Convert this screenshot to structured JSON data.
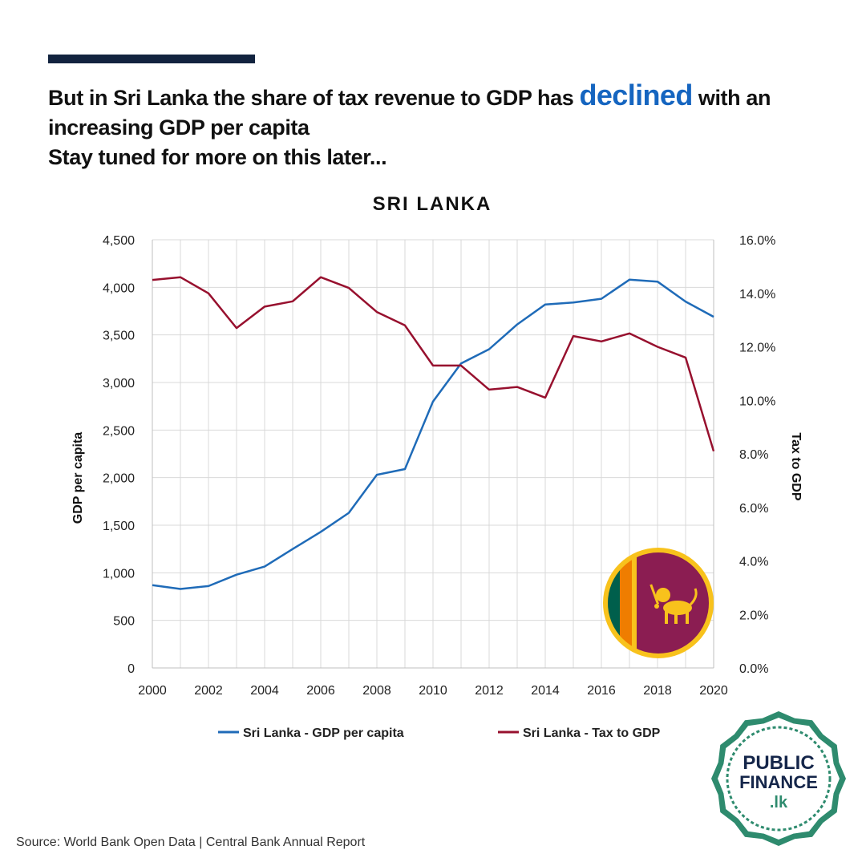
{
  "header": {
    "headline_pre": "But in Sri Lanka the share of tax revenue to GDP has",
    "headline_highlight": "declined",
    "headline_post": "with an",
    "headline_line2": "increasing GDP per capita",
    "headline_line3": "Stay tuned for more on this later..."
  },
  "colors": {
    "gdp_series": "#1f6bb8",
    "tax_series": "#97102e",
    "highlight": "#1565c0",
    "top_bar": "#12233f"
  },
  "chart_data": {
    "type": "line",
    "title": "SRI LANKA",
    "x": [
      2000,
      2001,
      2002,
      2003,
      2004,
      2005,
      2006,
      2007,
      2008,
      2009,
      2010,
      2011,
      2012,
      2013,
      2014,
      2015,
      2016,
      2017,
      2018,
      2019,
      2020
    ],
    "x_ticks": [
      "2000",
      "2002",
      "2004",
      "2006",
      "2008",
      "2010",
      "2012",
      "2014",
      "2016",
      "2018",
      "2020"
    ],
    "ylabel": "GDP per capita",
    "y2label": "Tax to GDP",
    "ylim": [
      0,
      4500
    ],
    "y2lim": [
      0,
      16
    ],
    "y_ticks": [
      "0",
      "500",
      "1,000",
      "1,500",
      "2,000",
      "2,500",
      "3,000",
      "3,500",
      "4,000",
      "4,500"
    ],
    "y2_ticks": [
      "0.0%",
      "2.0%",
      "4.0%",
      "6.0%",
      "8.0%",
      "10.0%",
      "12.0%",
      "14.0%",
      "16.0%"
    ],
    "grid": true,
    "legend_position": "bottom",
    "series": [
      {
        "name": "Sri Lanka - GDP per capita",
        "axis": "left",
        "values": [
          870,
          830,
          860,
          980,
          1065,
          1250,
          1430,
          1630,
          2030,
          2090,
          2800,
          3200,
          3350,
          3610,
          3820,
          3840,
          3880,
          4080,
          4060,
          3850,
          3690
        ]
      },
      {
        "name": "Sri Lanka - Tax to GDP",
        "axis": "right",
        "values": [
          14.5,
          14.6,
          14.0,
          12.7,
          13.5,
          13.7,
          14.6,
          14.2,
          13.3,
          12.8,
          11.3,
          11.3,
          10.4,
          10.5,
          10.1,
          12.4,
          12.2,
          12.5,
          12.0,
          11.6,
          8.1
        ]
      }
    ]
  },
  "footer": {
    "source": "Source: World Bank Open Data | Central Bank Annual Report",
    "logo_line1": "PUBLIC",
    "logo_line2": "FINANCE",
    "logo_line3": ".lk"
  }
}
